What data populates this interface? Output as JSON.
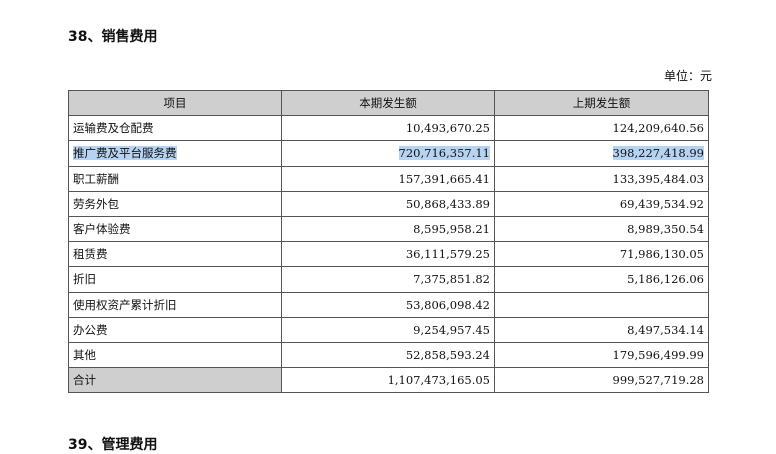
{
  "section_title": "38、销售费用",
  "unit": "单位：元",
  "table": {
    "headers": [
      "项目",
      "本期发生额",
      "上期发生额"
    ],
    "rows": [
      {
        "name": "运输费及仓配费",
        "current": "10,493,670.25",
        "previous": "124,209,640.56"
      },
      {
        "name": "推广费及平台服务费",
        "current": "720,716,357.11",
        "previous": "398,227,418.99"
      },
      {
        "name": "职工薪酬",
        "current": "157,391,665.41",
        "previous": "133,395,484.03"
      },
      {
        "name": "劳务外包",
        "current": "50,868,433.89",
        "previous": "69,439,534.92"
      },
      {
        "name": "客户体验费",
        "current": "8,595,958.21",
        "previous": "8,989,350.54"
      },
      {
        "name": "租赁费",
        "current": "36,111,579.25",
        "previous": "71,986,130.05"
      },
      {
        "name": "折旧",
        "current": "7,375,851.82",
        "previous": "5,186,126.06"
      },
      {
        "name": "使用权资产累计折旧",
        "current": "53,806,098.42",
        "previous": ""
      },
      {
        "name": "办公费",
        "current": "9,254,957.45",
        "previous": "8,497,534.14"
      },
      {
        "name": "其他",
        "current": "52,858,593.24",
        "previous": "179,596,499.99"
      },
      {
        "name": "合计",
        "current": "1,107,473,165.05",
        "previous": "999,527,719.28"
      }
    ]
  },
  "next_section_title": "39、管理费用",
  "colors": {
    "header_bg": "#cfcfcf",
    "highlight": "#b7d3f2"
  }
}
